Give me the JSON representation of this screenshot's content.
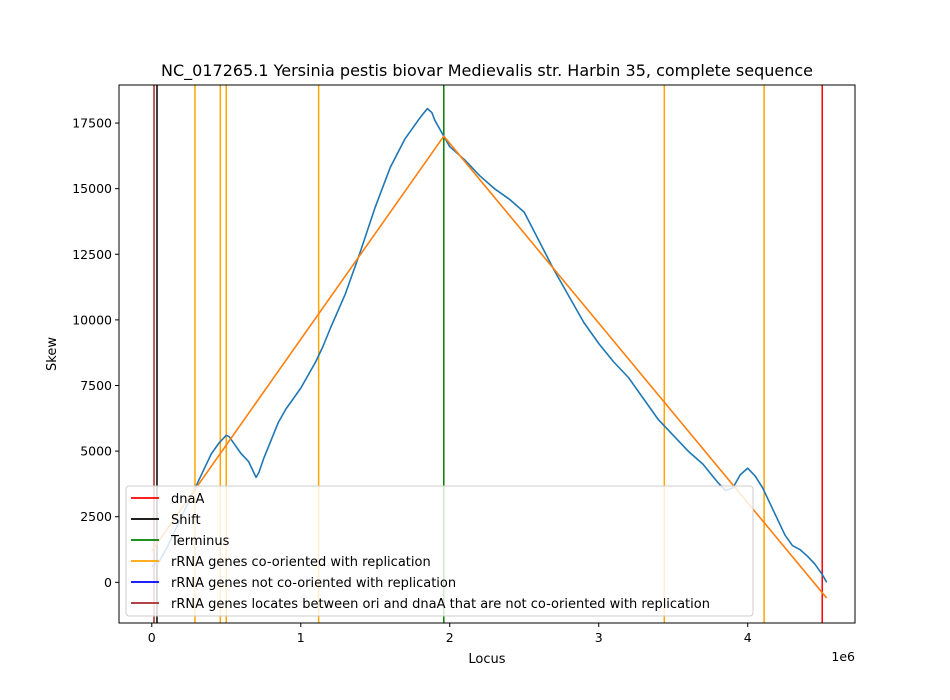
{
  "chart_data": {
    "type": "line",
    "title": "NC_017265.1 Yersinia pestis biovar Medievalis str. Harbin 35, complete sequence",
    "xlabel": "Locus",
    "ylabel": "Skew",
    "x_offset_label": "1e6",
    "xlim": [
      -0.22,
      4.72
    ],
    "ylim": [
      -1550,
      18950
    ],
    "xticks": [
      0,
      1,
      2,
      3,
      4
    ],
    "xtick_labels": [
      "0",
      "1",
      "2",
      "3",
      "4"
    ],
    "yticks": [
      0,
      2500,
      5000,
      7500,
      10000,
      12500,
      15000,
      17500
    ],
    "ytick_labels": [
      "0",
      "2500",
      "5000",
      "7500",
      "10000",
      "12500",
      "15000",
      "17500"
    ],
    "grid": false,
    "legend_position": "lower-left",
    "series": [
      {
        "color": "#1f77b4",
        "x": [
          0.0,
          0.05,
          0.1,
          0.15,
          0.2,
          0.25,
          0.3,
          0.35,
          0.4,
          0.45,
          0.5,
          0.52,
          0.55,
          0.6,
          0.65,
          0.7,
          0.72,
          0.75,
          0.8,
          0.85,
          0.9,
          0.95,
          1.0,
          1.05,
          1.1,
          1.15,
          1.2,
          1.3,
          1.4,
          1.5,
          1.6,
          1.7,
          1.8,
          1.85,
          1.88,
          1.9,
          1.95,
          2.0,
          2.1,
          2.2,
          2.3,
          2.4,
          2.5,
          2.6,
          2.7,
          2.8,
          2.9,
          3.0,
          3.1,
          3.2,
          3.3,
          3.4,
          3.5,
          3.6,
          3.7,
          3.8,
          3.85,
          3.9,
          3.95,
          4.0,
          4.05,
          4.1,
          4.15,
          4.2,
          4.25,
          4.3,
          4.35,
          4.4,
          4.45,
          4.5,
          4.53
        ],
        "y": [
          600,
          800,
          1300,
          1900,
          2500,
          3100,
          3700,
          4300,
          4900,
          5300,
          5600,
          5550,
          5300,
          4900,
          4600,
          4000,
          4200,
          4700,
          5400,
          6100,
          6600,
          7000,
          7400,
          7900,
          8400,
          9000,
          9700,
          11000,
          12600,
          14300,
          15800,
          16900,
          17700,
          18050,
          17900,
          17600,
          17100,
          16600,
          16100,
          15500,
          15000,
          14600,
          14100,
          13000,
          11900,
          10900,
          9900,
          9100,
          8400,
          7800,
          7000,
          6200,
          5600,
          5000,
          4500,
          3800,
          3500,
          3600,
          4100,
          4350,
          4050,
          3600,
          3000,
          2400,
          1800,
          1400,
          1250,
          1000,
          700,
          300,
          0
        ]
      },
      {
        "color": "#ff7f0e",
        "x": [
          0.0,
          1.96,
          4.53
        ],
        "y": [
          1200,
          17000,
          -600
        ]
      }
    ],
    "vertical_lines": [
      {
        "x": 4.5,
        "color": "#ff0000",
        "legend": "dnaA"
      },
      {
        "x": 0.035,
        "color": "#000000",
        "legend": "Shift"
      },
      {
        "x": 1.96,
        "color": "#008000",
        "legend": "Terminus"
      },
      {
        "x": 0.29,
        "color": "#ffa500",
        "legend": "rRNA genes co-oriented with replication"
      },
      {
        "x": 0.46,
        "color": "#ffa500"
      },
      {
        "x": 0.5,
        "color": "#ffa500"
      },
      {
        "x": 1.12,
        "color": "#ffa500"
      },
      {
        "x": 3.44,
        "color": "#ffa500"
      },
      {
        "x": 4.11,
        "color": "#ffa500"
      },
      {
        "x": 0.015,
        "color": "#a52a2a",
        "legend": "rRNA genes locates between ori and dnaA that are not co-oriented with replication"
      }
    ],
    "legend": [
      {
        "label": "dnaA",
        "color": "#ff0000"
      },
      {
        "label": "Shift",
        "color": "#000000"
      },
      {
        "label": "Terminus",
        "color": "#008000"
      },
      {
        "label": "rRNA genes co-oriented with replication",
        "color": "#ffa500"
      },
      {
        "label": "rRNA genes not co-oriented with replication",
        "color": "#0000ff"
      },
      {
        "label": "rRNA genes locates between ori and dnaA that are not co-oriented with replication",
        "color": "#a52a2a"
      }
    ]
  }
}
